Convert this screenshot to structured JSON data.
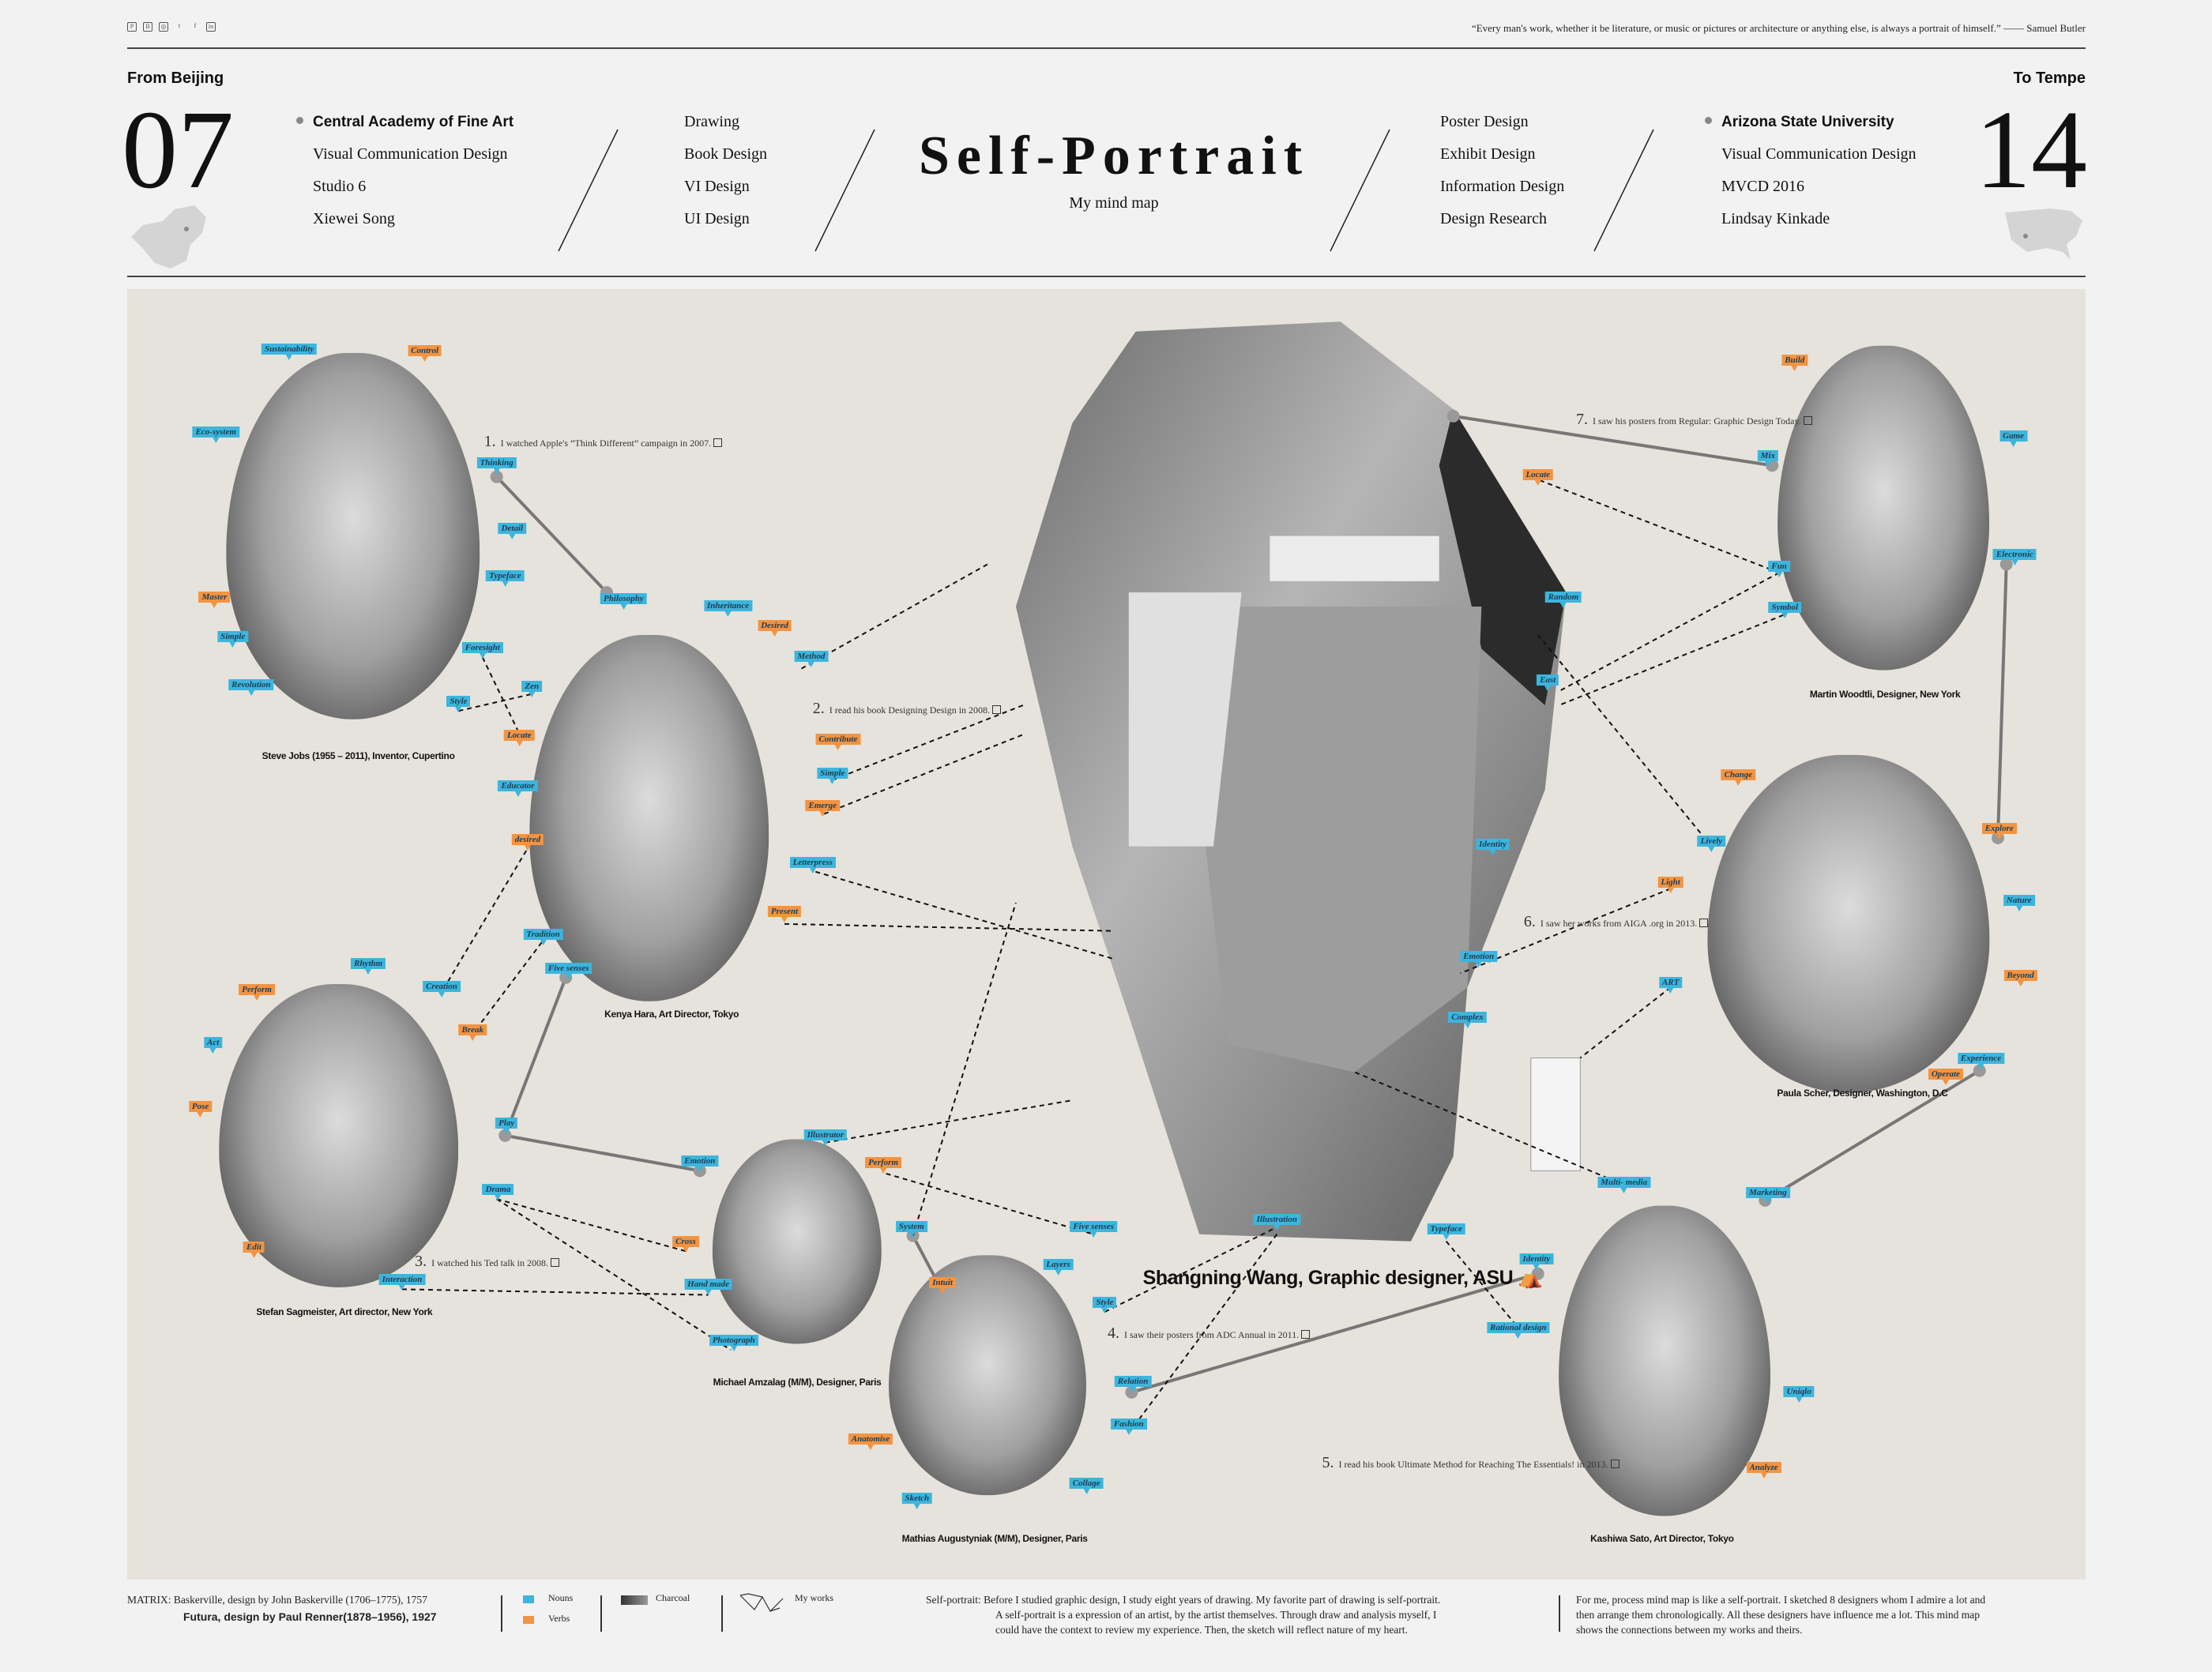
{
  "header": {
    "social_icons": [
      "pinterest-icon",
      "behance-icon",
      "instagram-icon",
      "twitter-icon",
      "facebook-icon",
      "linkedin-icon"
    ],
    "quote": "“Every man's work, whether it be literature, or music or pictures or architecture or anything else, is always a portrait of himself.” —— Samuel Butler",
    "from_label": "From Beijing",
    "to_label": "To Tempe",
    "start_year": "07",
    "end_year": "14",
    "left_school": [
      "Central Academy of Fine Art",
      "Visual Communication Design",
      "Studio 6",
      "Xiewei Song"
    ],
    "left_skills": [
      "Drawing",
      "Book Design",
      "VI Design",
      "UI Design"
    ],
    "title": "Self-Portrait",
    "subtitle": "My mind map",
    "right_skills": [
      "Poster Design",
      "Exhibit Design",
      "Information Design",
      "Design Research"
    ],
    "right_school": [
      "Arizona State University",
      "Visual Communication Design",
      "MVCD 2016",
      "Lindsay Kinkade"
    ]
  },
  "colors": {
    "noun": "#3db5dc",
    "verb": "#f39442",
    "panel": "#e6e3dc",
    "line": "#777777"
  },
  "portraits": [
    {
      "caption": "Steve  Jobs (1955 – 2011), Inventor, Cupertino"
    },
    {
      "caption": "Kenya Hara, Art Director, Tokyo"
    },
    {
      "caption": "Stefan Sagmeister, Art director, New York"
    },
    {
      "caption": "Michael Amzalag (M/M), Designer, Paris"
    },
    {
      "caption": "Mathias Augustyniak (M/M), Designer, Paris"
    },
    {
      "caption": "Martin Woodtli, Designer, New York"
    },
    {
      "caption": "Paula Scher, Designer, Washington, D.C"
    },
    {
      "caption": "Kashiwa Sato, Art Director, Tokyo"
    }
  ],
  "self": {
    "caption": "Shangning Wang, Graphic designer, ASU",
    "icon": "easel-icon"
  },
  "notes": [
    {
      "num": "1.",
      "text": "I watched Apple's “Think Different” campaign in 2007.",
      "icon": "apple-icon"
    },
    {
      "num": "2.",
      "text": "I read his book Designing Design in 2008.",
      "icon": "book-icon"
    },
    {
      "num": "3.",
      "text": "I watched his Ted talk in 2008.",
      "icon": "video-icon"
    },
    {
      "num": "4.",
      "text": "I saw their posters from ADC Annual in 2011.",
      "icon": "book-icon"
    },
    {
      "num": "5.",
      "text": "I read his book Ultimate Method for Reaching The Essentials! in 2013.",
      "icon": "book-icon"
    },
    {
      "num": "6.",
      "text": "I saw her works from AIGA .org in 2013.",
      "icon": "monitor-icon"
    },
    {
      "num": "7.",
      "text": "I saw his posters from Regular: Graphic Design Today.",
      "icon": "book-icon"
    }
  ],
  "tags": [
    {
      "label": "Sustainability",
      "type": "noun"
    },
    {
      "label": "Control",
      "type": "verb"
    },
    {
      "label": "Eco-system",
      "type": "noun"
    },
    {
      "label": "Thinking",
      "type": "noun"
    },
    {
      "label": "Detail",
      "type": "noun"
    },
    {
      "label": "Typeface",
      "type": "noun"
    },
    {
      "label": "Master",
      "type": "verb"
    },
    {
      "label": "Simple",
      "type": "noun"
    },
    {
      "label": "Revolution",
      "type": "noun"
    },
    {
      "label": "Foresight",
      "type": "noun"
    },
    {
      "label": "Zen",
      "type": "noun"
    },
    {
      "label": "Style",
      "type": "noun"
    },
    {
      "label": "Locate",
      "type": "verb"
    },
    {
      "label": "Philosophy",
      "type": "noun"
    },
    {
      "label": "Inheritance",
      "type": "noun"
    },
    {
      "label": "Desired",
      "type": "verb"
    },
    {
      "label": "Method",
      "type": "noun"
    },
    {
      "label": "Contribute",
      "type": "verb"
    },
    {
      "label": "Simple",
      "type": "noun"
    },
    {
      "label": "Emerge",
      "type": "verb"
    },
    {
      "label": "Educator",
      "type": "noun"
    },
    {
      "label": "desired",
      "type": "verb"
    },
    {
      "label": "Letterpress",
      "type": "noun"
    },
    {
      "label": "Present",
      "type": "verb"
    },
    {
      "label": "Tradition",
      "type": "noun"
    },
    {
      "label": "Five senses",
      "type": "noun"
    },
    {
      "label": "Creation",
      "type": "noun"
    },
    {
      "label": "Break",
      "type": "verb"
    },
    {
      "label": "Rhythm",
      "type": "noun"
    },
    {
      "label": "Perform",
      "type": "verb"
    },
    {
      "label": "Act",
      "type": "noun"
    },
    {
      "label": "Pose",
      "type": "verb"
    },
    {
      "label": "Play",
      "type": "noun"
    },
    {
      "label": "Emotion",
      "type": "noun"
    },
    {
      "label": "Drama",
      "type": "noun"
    },
    {
      "label": "Edit",
      "type": "verb"
    },
    {
      "label": "Interaction",
      "type": "noun"
    },
    {
      "label": "Cross",
      "type": "verb"
    },
    {
      "label": "Hand made",
      "type": "noun"
    },
    {
      "label": "Photograph",
      "type": "noun"
    },
    {
      "label": "Illustrator",
      "type": "noun"
    },
    {
      "label": "Perform",
      "type": "verb"
    },
    {
      "label": "System",
      "type": "noun"
    },
    {
      "label": "Intuit",
      "type": "verb"
    },
    {
      "label": "Layers",
      "type": "noun"
    },
    {
      "label": "Style",
      "type": "noun"
    },
    {
      "label": "Relation",
      "type": "noun"
    },
    {
      "label": "Fashion",
      "type": "noun"
    },
    {
      "label": "Five senses",
      "type": "noun"
    },
    {
      "label": "Anatomise",
      "type": "verb"
    },
    {
      "label": "Sketch",
      "type": "noun"
    },
    {
      "label": "Collage",
      "type": "noun"
    },
    {
      "label": "Identity",
      "type": "noun"
    },
    {
      "label": "Rational design",
      "type": "noun"
    },
    {
      "label": "Typeface",
      "type": "noun"
    },
    {
      "label": "Multi- media",
      "type": "noun"
    },
    {
      "label": "Marketing",
      "type": "noun"
    },
    {
      "label": "Uniqlo",
      "type": "noun"
    },
    {
      "label": "Analyze",
      "type": "verb"
    },
    {
      "label": "Build",
      "type": "verb"
    },
    {
      "label": "Mix",
      "type": "noun"
    },
    {
      "label": "Game",
      "type": "noun"
    },
    {
      "label": "Fun",
      "type": "noun"
    },
    {
      "label": "Symbol",
      "type": "noun"
    },
    {
      "label": "Electronic",
      "type": "noun"
    },
    {
      "label": "Locate",
      "type": "verb"
    },
    {
      "label": "Change",
      "type": "verb"
    },
    {
      "label": "Lively",
      "type": "noun"
    },
    {
      "label": "Light",
      "type": "verb"
    },
    {
      "label": "ART",
      "type": "noun"
    },
    {
      "label": "Explore",
      "type": "verb"
    },
    {
      "label": "Nature",
      "type": "noun"
    },
    {
      "label": "Beyond",
      "type": "verb"
    },
    {
      "label": "Experience",
      "type": "noun"
    },
    {
      "label": "Operate",
      "type": "verb"
    },
    {
      "label": "Illustration",
      "type": "noun"
    },
    {
      "label": "Emotion",
      "type": "noun"
    },
    {
      "label": "Identity",
      "type": "noun"
    },
    {
      "label": "Random",
      "type": "noun"
    },
    {
      "label": "East",
      "type": "noun"
    },
    {
      "label": "Complex",
      "type": "noun"
    }
  ],
  "footer": {
    "matrix": "MATRIX: Baskerville, design by John Baskerville (1706–1775), 1757",
    "futura": "Futura, design by Paul Renner(1878–1956), 1927",
    "legend_nouns": "Nouns",
    "legend_verbs": "Verbs",
    "legend_charcoal": "Charcoal",
    "legend_works": "My works",
    "para1": [
      "Self-portrait: Before I studied graphic design, I study eight years of drawing. My favorite part of drawing is self-portrait.",
      "A self-portrait is a expression of an artist, by the artist themselves. Through draw and analysis myself, I",
      "could have the context to review my experience. Then, the sketch will reflect nature of my heart."
    ],
    "para2": [
      "For me, process mind map is like a self-portrait.  I sketched 8 designers whom I admire a lot and",
      "then arrange them chronologically. All these designers have influence me a lot. This mind map",
      "shows the connections between my works and theirs."
    ]
  }
}
